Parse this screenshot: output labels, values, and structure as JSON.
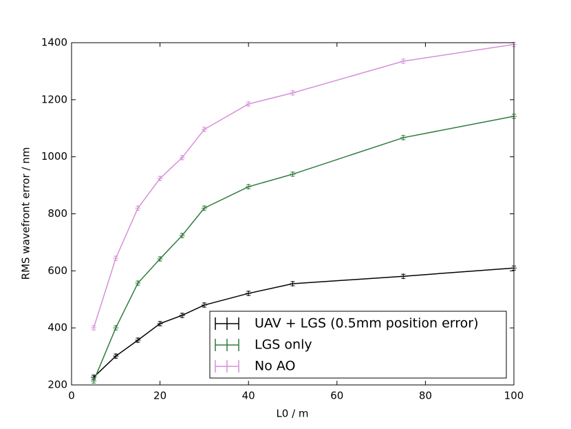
{
  "chart_data": {
    "type": "line",
    "x_label": "L0 / m",
    "y_label": "RMS wavefront error / nm",
    "x": [
      5,
      10,
      15,
      20,
      25,
      30,
      40,
      50,
      75,
      100
    ],
    "series": [
      {
        "name": "UAV + LGS (0.5mm position error)",
        "color": "#000000",
        "values": [
          227,
          301,
          357,
          415,
          444,
          480,
          521,
          555,
          581,
          610
        ]
      },
      {
        "name": "LGS only",
        "color": "#2f7a3c",
        "values": [
          214,
          400,
          557,
          642,
          724,
          820,
          895,
          939,
          1067,
          1142
        ]
      },
      {
        "name": "No AO",
        "color": "#d68fd6",
        "values": [
          400,
          644,
          820,
          924,
          997,
          1096,
          1185,
          1224,
          1335,
          1394
        ]
      }
    ],
    "xlim": [
      0,
      100
    ],
    "xticks": [
      0,
      20,
      40,
      60,
      80,
      100
    ],
    "ylim": [
      200,
      1400
    ],
    "yticks": [
      200,
      400,
      600,
      800,
      1000,
      1200,
      1400
    ],
    "legend": "lower right",
    "grid": false
  }
}
